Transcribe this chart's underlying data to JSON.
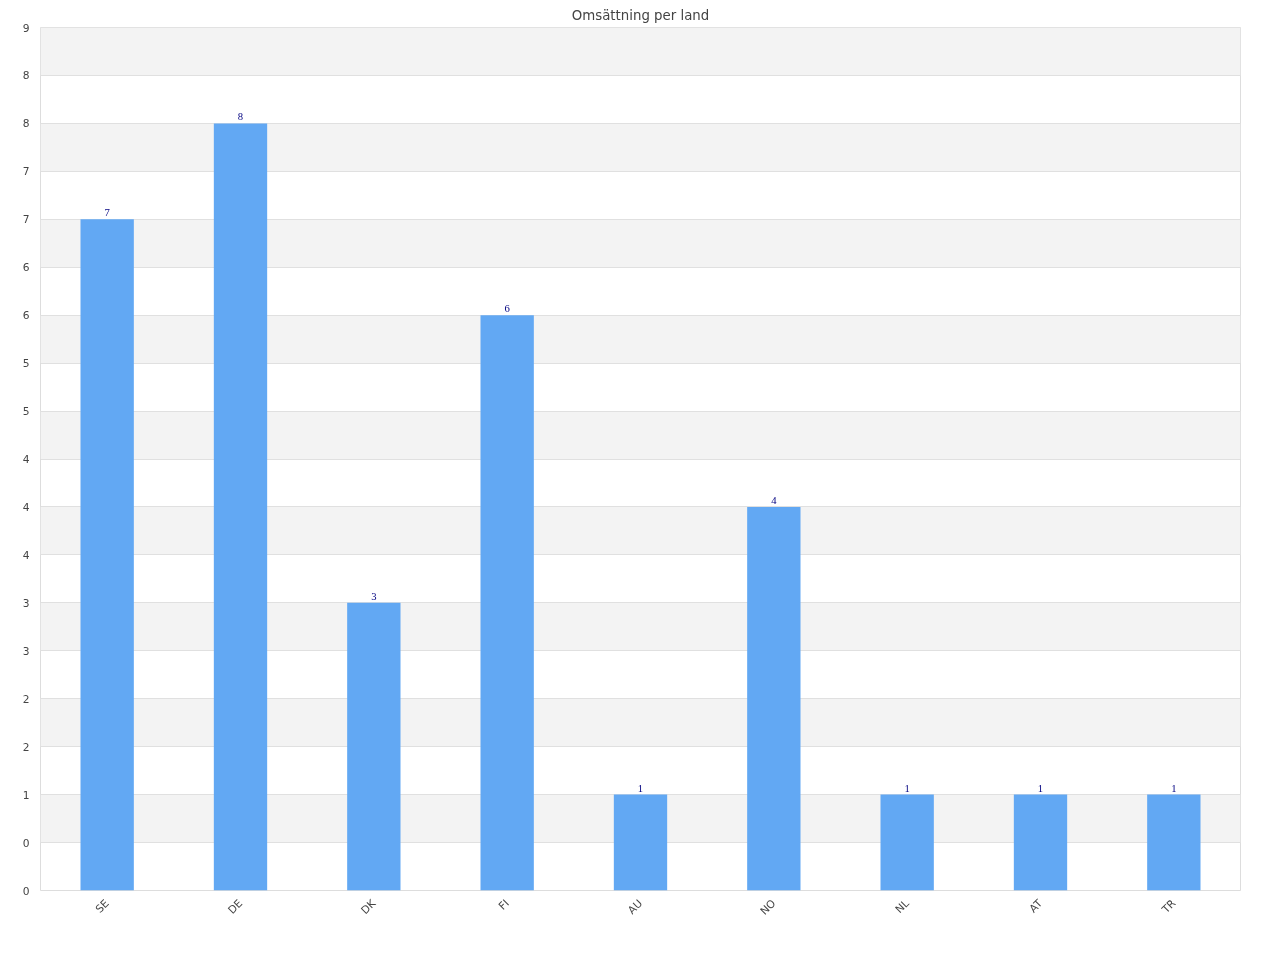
{
  "chart_data": {
    "type": "bar",
    "title": "Omsättning per land",
    "categories": [
      "SE",
      "DE",
      "DK",
      "FI",
      "AU",
      "NO",
      "NL",
      "AT",
      "TR"
    ],
    "values": [
      7,
      8,
      3,
      6,
      1,
      4,
      1,
      1,
      1
    ],
    "color": "#62a8f3",
    "ylim": [
      0,
      9
    ],
    "yticks": [
      0,
      {
        "value": 0.5,
        "label": "0"
      },
      1,
      {
        "value": 1.5,
        "label": "2"
      },
      2,
      {
        "value": 2.5,
        "label": "3"
      },
      3,
      {
        "value": 3.5,
        "label": "4"
      },
      4,
      {
        "value": 4.5,
        "label": "4"
      },
      5,
      {
        "value": 5.5,
        "label": "5"
      },
      6,
      {
        "value": 6.5,
        "label": "6"
      },
      7,
      {
        "value": 7.5,
        "label": "7"
      },
      8,
      {
        "value": 8.5,
        "label": "8"
      },
      9
    ],
    "grid": "y",
    "data_labels": true
  }
}
